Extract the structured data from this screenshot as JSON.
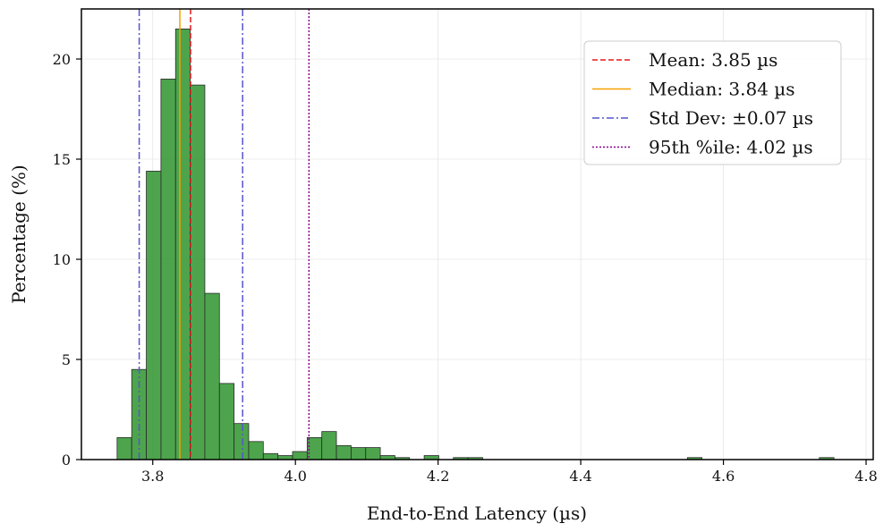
{
  "chart_data": {
    "type": "histogram",
    "xlabel": "End-to-End Latency (µs)",
    "ylabel": "Percentage (%)",
    "xlim": [
      3.7,
      4.81
    ],
    "ylim": [
      0,
      22.5
    ],
    "xticks": [
      3.8,
      4.0,
      4.2,
      4.4,
      4.6,
      4.8
    ],
    "xtick_labels": [
      "3.8",
      "4.0",
      "4.2",
      "4.4",
      "4.6",
      "4.8"
    ],
    "yticks": [
      0,
      5,
      10,
      15,
      20
    ],
    "ytick_labels": [
      "0",
      "5",
      "10",
      "15",
      "20"
    ],
    "grid": true,
    "bar_color": "#3a9a3a",
    "bins": [
      {
        "x0": 3.75,
        "x1": 3.7705,
        "value": 1.1
      },
      {
        "x0": 3.7705,
        "x1": 3.791,
        "value": 4.5
      },
      {
        "x0": 3.791,
        "x1": 3.8115,
        "value": 14.4
      },
      {
        "x0": 3.8115,
        "x1": 3.832,
        "value": 19.0
      },
      {
        "x0": 3.832,
        "x1": 3.8525,
        "value": 21.5
      },
      {
        "x0": 3.8525,
        "x1": 3.873,
        "value": 18.7
      },
      {
        "x0": 3.873,
        "x1": 3.8935,
        "value": 8.3
      },
      {
        "x0": 3.8935,
        "x1": 3.914,
        "value": 3.8
      },
      {
        "x0": 3.914,
        "x1": 3.9345,
        "value": 1.8
      },
      {
        "x0": 3.9345,
        "x1": 3.955,
        "value": 0.9
      },
      {
        "x0": 3.955,
        "x1": 3.9755,
        "value": 0.3
      },
      {
        "x0": 3.9755,
        "x1": 3.996,
        "value": 0.2
      },
      {
        "x0": 3.996,
        "x1": 4.0165,
        "value": 0.4
      },
      {
        "x0": 4.0165,
        "x1": 4.037,
        "value": 1.1
      },
      {
        "x0": 4.037,
        "x1": 4.0575,
        "value": 1.4
      },
      {
        "x0": 4.0575,
        "x1": 4.078,
        "value": 0.7
      },
      {
        "x0": 4.078,
        "x1": 4.0985,
        "value": 0.6
      },
      {
        "x0": 4.0985,
        "x1": 4.119,
        "value": 0.6
      },
      {
        "x0": 4.119,
        "x1": 4.1395,
        "value": 0.2
      },
      {
        "x0": 4.1395,
        "x1": 4.16,
        "value": 0.1
      },
      {
        "x0": 4.1805,
        "x1": 4.201,
        "value": 0.2
      },
      {
        "x0": 4.2215,
        "x1": 4.242,
        "value": 0.1
      },
      {
        "x0": 4.242,
        "x1": 4.2625,
        "value": 0.1
      },
      {
        "x0": 4.5495,
        "x1": 4.57,
        "value": 0.1
      },
      {
        "x0": 4.7345,
        "x1": 4.755,
        "value": 0.1
      }
    ],
    "reference_lines": [
      {
        "label": "Mean: 3.85 µs",
        "x": 3.853,
        "color": "#e31a1c",
        "style": "dashed"
      },
      {
        "label": "Median: 3.84 µs",
        "x": 3.838,
        "color": "#f5a000",
        "style": "solid"
      },
      {
        "label": "Std Dev: ±0.07 µs",
        "x": [
          3.781,
          3.926
        ],
        "color": "#5555cc",
        "style": "dashdot"
      },
      {
        "label": "95th %ile: 4.02 µs",
        "x": 4.019,
        "color": "#8b008b",
        "style": "dotted"
      }
    ],
    "legend_position": "upper right"
  }
}
